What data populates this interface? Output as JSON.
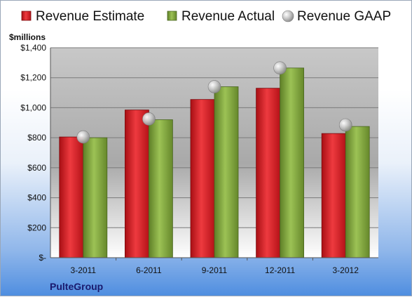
{
  "chart_data": {
    "type": "bar",
    "unit_label": "$millions",
    "company": "PulteGroup",
    "categories": [
      "3-2011",
      "6-2011",
      "9-2011",
      "12-2011",
      "3-2012"
    ],
    "yticks": [
      "$-",
      "$200",
      "$400",
      "$600",
      "$800",
      "$1,000",
      "$1,200",
      "$1,400"
    ],
    "ylim": [
      0,
      1400
    ],
    "grid": true,
    "legend_position": "top",
    "series": [
      {
        "name": "Revenue Estimate",
        "kind": "bar",
        "color": "#d6141c",
        "values": [
          805,
          985,
          1055,
          1130,
          828
        ]
      },
      {
        "name": "Revenue Actual",
        "kind": "bar",
        "color": "#7ea33a",
        "values": [
          800,
          920,
          1140,
          1265,
          875
        ]
      },
      {
        "name": "Revenue GAAP",
        "kind": "marker",
        "color": "#b8b8b8",
        "values": [
          805,
          925,
          1140,
          1265,
          885
        ]
      }
    ]
  }
}
